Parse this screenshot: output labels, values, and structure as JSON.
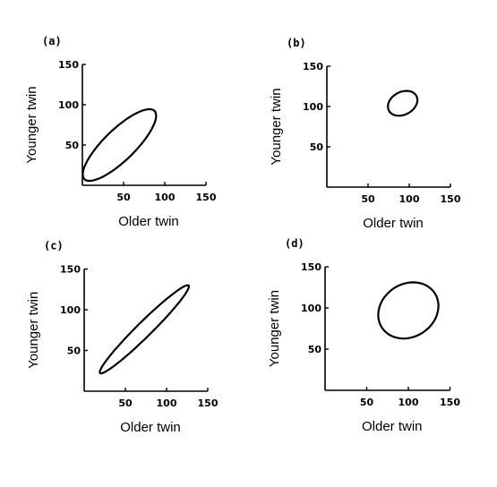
{
  "chart_data": [
    {
      "type": "scatter",
      "panel_label": "(a)",
      "xlabel": "Older twin",
      "ylabel": "Younger twin",
      "xlim": [
        0,
        150
      ],
      "ylim": [
        0,
        150
      ],
      "x_ticks": [
        "50",
        "100",
        "150"
      ],
      "y_ticks": [
        "50",
        "100",
        "150"
      ],
      "grid": false,
      "ellipse": {
        "center": [
          45,
          50
        ],
        "semi_axes": [
          60,
          19
        ],
        "angle_deg": 45
      }
    },
    {
      "type": "scatter",
      "panel_label": "(b)",
      "xlabel": "Older twin",
      "ylabel": "Younger twin",
      "xlim": [
        0,
        150
      ],
      "ylim": [
        0,
        150
      ],
      "x_ticks": [
        "50",
        "100",
        "150"
      ],
      "y_ticks": [
        "50",
        "100",
        "150"
      ],
      "grid": false,
      "ellipse": {
        "center": [
          92,
          104
        ],
        "semi_axes": [
          19,
          14
        ],
        "angle_deg": 30
      }
    },
    {
      "type": "scatter",
      "panel_label": "(c)",
      "xlabel": "Older twin",
      "ylabel": "Younger twin",
      "xlim": [
        0,
        150
      ],
      "ylim": [
        0,
        150
      ],
      "x_ticks": [
        "50",
        "100",
        "150"
      ],
      "y_ticks": [
        "50",
        "100",
        "150"
      ],
      "grid": false,
      "ellipse": {
        "center": [
          73,
          76
        ],
        "semi_axes": [
          76,
          9
        ],
        "angle_deg": 45
      }
    },
    {
      "type": "scatter",
      "panel_label": "(d)",
      "xlabel": "Older twin",
      "ylabel": "Younger twin",
      "xlim": [
        0,
        150
      ],
      "ylim": [
        0,
        150
      ],
      "x_ticks": [
        "50",
        "100",
        "150"
      ],
      "y_ticks": [
        "50",
        "100",
        "150"
      ],
      "grid": false,
      "ellipse": {
        "center": [
          100,
          97
        ],
        "semi_axes": [
          38,
          32
        ],
        "angle_deg": 35
      }
    }
  ]
}
